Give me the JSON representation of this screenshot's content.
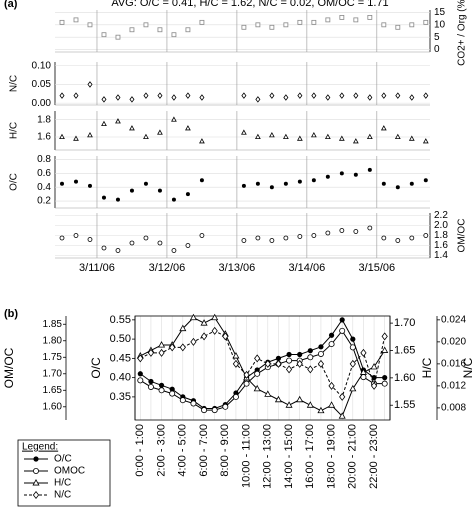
{
  "chart_data": [
    {
      "type": "scatter",
      "panel_label": "(a)",
      "title": "AVG: O/C = 0.41, H/C = 1.62, N/C = 0.02, OM/OC = 1.71",
      "x": [
        10.5,
        10.7,
        10.9,
        11.1,
        11.3,
        11.5,
        11.7,
        11.9,
        12.1,
        12.3,
        12.5,
        13.1,
        13.3,
        13.5,
        13.7,
        13.9,
        14.1,
        14.3,
        14.5,
        14.7,
        14.9,
        15.1,
        15.3,
        15.5,
        15.7
      ],
      "xlim": [
        10.4,
        15.76
      ],
      "xticks": [
        {
          "value": 11,
          "label": "3/11/06"
        },
        {
          "value": 12,
          "label": "3/12/06"
        },
        {
          "value": 13,
          "label": "3/13/06"
        },
        {
          "value": 14,
          "label": "3/14/06"
        },
        {
          "value": 15,
          "label": "3/15/06"
        }
      ],
      "grid": true,
      "series": [
        {
          "name": "CO2+ / Org (%)",
          "axis": "y2",
          "marker": "square",
          "color": "#888888",
          "ylim": [
            -1,
            16
          ],
          "yticks": [
            0,
            5,
            10,
            15
          ],
          "values": [
            11,
            12,
            10,
            6,
            5,
            8,
            10,
            8,
            6,
            8,
            11,
            9,
            10,
            9,
            10,
            11,
            11,
            12,
            13,
            12,
            13,
            10,
            9,
            10,
            11
          ]
        },
        {
          "name": "N/C",
          "axis": "y",
          "marker": "diamond",
          "color": "#000000",
          "ylim": [
            -0.005,
            0.11
          ],
          "yticks": [
            {
              "value": 0,
              "label": "0.00"
            },
            0.05,
            {
              "value": 0.1,
              "label": "0.10"
            }
          ],
          "values": [
            0.02,
            0.02,
            0.05,
            0.01,
            0.015,
            0.01,
            0.02,
            0.02,
            0.015,
            0.02,
            0.015,
            0.02,
            0.01,
            0.02,
            0.015,
            0.02,
            0.02,
            0.015,
            0.02,
            0.02,
            0.015,
            0.02,
            0.02,
            0.015,
            0.02
          ]
        },
        {
          "name": "H/C",
          "axis": "y",
          "marker": "triangle",
          "color": "#000000",
          "ylim": [
            1.45,
            1.9
          ],
          "yticks": [
            1.6,
            1.8
          ],
          "values": [
            1.6,
            1.58,
            1.62,
            1.75,
            1.78,
            1.7,
            1.6,
            1.65,
            1.8,
            1.7,
            1.55,
            1.65,
            1.6,
            1.62,
            1.6,
            1.58,
            1.62,
            1.6,
            1.58,
            1.55,
            1.6,
            1.7,
            1.6,
            1.58,
            1.55
          ]
        },
        {
          "name": "O/C",
          "axis": "y",
          "marker": "filled",
          "color": "#000000",
          "ylim": [
            0.1,
            0.85
          ],
          "yticks": [
            0.2,
            0.4,
            0.6,
            0.8
          ],
          "values": [
            0.45,
            0.48,
            0.42,
            0.25,
            0.22,
            0.35,
            0.45,
            0.35,
            0.22,
            0.3,
            0.5,
            0.42,
            0.45,
            0.4,
            0.45,
            0.48,
            0.5,
            0.55,
            0.6,
            0.58,
            0.65,
            0.45,
            0.4,
            0.45,
            0.5
          ]
        },
        {
          "name": "OM/OC",
          "axis": "y2",
          "marker": "circle",
          "color": "#000000",
          "ylim": [
            1.35,
            2.25
          ],
          "yticks": [
            1.4,
            1.6,
            1.8,
            {
              "value": 2,
              "label": "2.0"
            },
            2.2
          ],
          "values": [
            1.75,
            1.8,
            1.72,
            1.55,
            1.5,
            1.65,
            1.75,
            1.65,
            1.5,
            1.6,
            1.8,
            1.7,
            1.75,
            1.7,
            1.75,
            1.78,
            1.8,
            1.85,
            1.9,
            1.88,
            1.95,
            1.75,
            1.7,
            1.75,
            1.8
          ]
        }
      ]
    },
    {
      "type": "line",
      "panel_label": "(b)",
      "legend_title": "Legend:",
      "categories": [
        "0:00 - 1:00",
        null,
        "2:00 - 3:00",
        null,
        "4:00 - 5:00",
        null,
        "6:00 - 7:00",
        null,
        "8:00 - 9:00",
        null,
        "10:00 - 11:00",
        null,
        "12:00 - 13:00",
        null,
        "14:00 - 15:00",
        null,
        "16:00 - 17:00",
        null,
        "18:00 - 19:00",
        null,
        "20:00 - 21:00",
        null,
        "22:00 - 23:00",
        null
      ],
      "series": [
        {
          "name": "O/C",
          "ylabel": "O/C",
          "marker": "filled",
          "dash": false,
          "color": "#000000",
          "ylim": [
            0.29,
            0.56
          ],
          "yticks": [
            0.35,
            {
              "value": 0.4,
              "label": "0.40"
            },
            0.45,
            {
              "value": 0.5,
              "label": "0.50"
            },
            0.55
          ],
          "values": [
            0.41,
            0.39,
            0.38,
            0.37,
            0.35,
            0.34,
            0.32,
            0.32,
            0.33,
            0.36,
            0.4,
            0.42,
            0.44,
            0.45,
            0.46,
            0.46,
            0.47,
            0.48,
            0.51,
            0.55,
            0.5,
            0.42,
            0.4,
            0.4
          ]
        },
        {
          "name": "OMOC",
          "ylabel": "OM/OC",
          "marker": "circle",
          "dash": false,
          "color": "#000000",
          "ylim": [
            1.56,
            1.875
          ],
          "yticks": [
            {
              "value": 1.6,
              "label": "1.60"
            },
            1.65,
            {
              "value": 1.7,
              "label": "1.70"
            },
            1.75,
            {
              "value": 1.8,
              "label": "1.80"
            },
            1.85
          ],
          "values": [
            1.68,
            1.66,
            1.65,
            1.64,
            1.62,
            1.61,
            1.59,
            1.59,
            1.6,
            1.63,
            1.67,
            1.7,
            1.72,
            1.73,
            1.74,
            1.74,
            1.75,
            1.76,
            1.79,
            1.83,
            1.78,
            1.69,
            1.67,
            1.67
          ]
        },
        {
          "name": "H/C",
          "ylabel": "H/C",
          "marker": "triangle",
          "dash": false,
          "color": "#000000",
          "ylim": [
            1.523,
            1.713
          ],
          "yticks": [
            1.55,
            {
              "value": 1.6,
              "label": "1.60"
            },
            1.65,
            {
              "value": 1.7,
              "label": "1.70"
            }
          ],
          "values": [
            1.64,
            1.65,
            1.66,
            1.66,
            1.69,
            1.71,
            1.7,
            1.71,
            1.68,
            1.64,
            1.6,
            1.58,
            1.57,
            1.56,
            1.55,
            1.56,
            1.55,
            1.54,
            1.55,
            1.53,
            1.58,
            1.61,
            1.62,
            1.65
          ]
        },
        {
          "name": "N/C",
          "ylabel": "N/C",
          "marker": "diamond",
          "dash": true,
          "color": "#000000",
          "ylim": [
            0.0058,
            0.0247
          ],
          "yticks": [
            0.008,
            0.012,
            0.016,
            {
              "value": 0.02,
              "label": "0.020"
            },
            0.024
          ],
          "values": [
            0.017,
            0.018,
            0.018,
            0.019,
            0.019,
            0.02,
            0.021,
            0.022,
            0.021,
            0.016,
            0.014,
            0.017,
            0.016,
            0.016,
            0.015,
            0.016,
            0.015,
            0.016,
            0.012,
            0.01,
            0.016,
            0.018,
            0.012,
            0.021
          ]
        }
      ]
    }
  ]
}
